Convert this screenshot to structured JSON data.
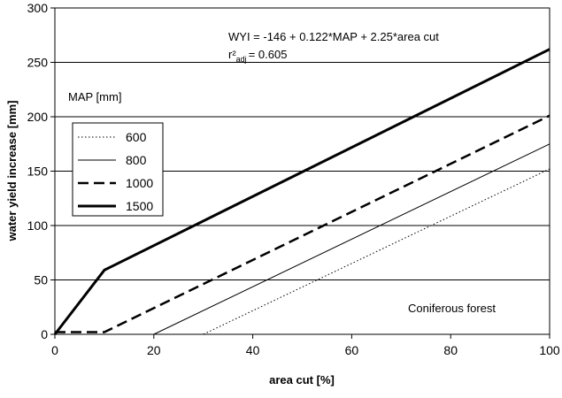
{
  "chart_data": {
    "type": "line",
    "title": "",
    "xlabel": "area cut [%]",
    "ylabel": "water yield increase [mm]",
    "xlim": [
      0,
      100
    ],
    "ylim": [
      0,
      300
    ],
    "x_ticks": [
      0,
      20,
      40,
      60,
      80,
      100
    ],
    "y_ticks": [
      0,
      50,
      100,
      150,
      200,
      250,
      300
    ],
    "grid": "horizontal",
    "legend_title": "MAP [mm]",
    "legend_placement": "left",
    "series": [
      {
        "name": "600",
        "style": "dotted",
        "color": "#000000",
        "x": [
          0,
          30,
          100
        ],
        "y": [
          0,
          0,
          152
        ]
      },
      {
        "name": "800",
        "style": "thin",
        "color": "#000000",
        "x": [
          0,
          20,
          100
        ],
        "y": [
          0,
          0,
          175
        ]
      },
      {
        "name": "1000",
        "style": "dashed",
        "color": "#000000",
        "x": [
          0,
          10,
          100
        ],
        "y": [
          2,
          2,
          201
        ]
      },
      {
        "name": "1500",
        "style": "thick",
        "color": "#000000",
        "x": [
          0,
          10,
          100
        ],
        "y": [
          0,
          59,
          262
        ]
      }
    ],
    "annotations": {
      "equation": "WYI = -146 + 0.122*MAP + 2.25*area cut",
      "r2_prefix": "r²",
      "r2_sub": "adj",
      "r2_value": "= 0.605",
      "forest": "Coniferous forest"
    }
  }
}
